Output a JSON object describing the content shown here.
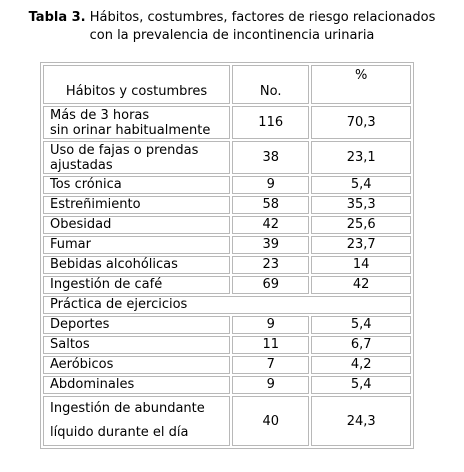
{
  "caption": {
    "label": "Tabla 3.",
    "line1": "Hábitos, costumbres, factores de riesgo relacionados",
    "line2": "con la prevalencia de incontinencia urinaria"
  },
  "table": {
    "headers": [
      "Hábitos y costumbres",
      "No.",
      "%"
    ],
    "rows": [
      {
        "label_line1": "Más de 3 horas",
        "label_line2": "sin orinar habitualmente",
        "no": "116",
        "pct": "70,3"
      },
      {
        "label_line1": "Uso de fajas o prendas",
        "label_line2": "ajustadas",
        "no": "38",
        "pct": "23,1"
      },
      {
        "label": "Tos crónica",
        "no": "9",
        "pct": "5,4"
      },
      {
        "label": "Estreñimiento",
        "no": "58",
        "pct": "35,3"
      },
      {
        "label": "Obesidad",
        "no": "42",
        "pct": "25,6"
      },
      {
        "label": "Fumar",
        "no": "39",
        "pct": "23,7"
      },
      {
        "label": "Bebidas alcohólicas",
        "no": "23",
        "pct": "14"
      },
      {
        "label": "Ingestión de café",
        "no": "69",
        "pct": "42"
      },
      {
        "label": "Práctica de ejercicios",
        "no": "",
        "pct": ""
      },
      {
        "label": "Deportes",
        "no": "9",
        "pct": "5,4"
      },
      {
        "label": "Saltos",
        "no": "11",
        "pct": "6,7"
      },
      {
        "label": "Aeróbicos",
        "no": "7",
        "pct": "4,2"
      },
      {
        "label": "Abdominales",
        "no": "9",
        "pct": "5,4"
      },
      {
        "label_line1": "Ingestión de abundante",
        "label_line2": "líquido durante el día",
        "no": "40",
        "pct": "24,3"
      }
    ]
  }
}
